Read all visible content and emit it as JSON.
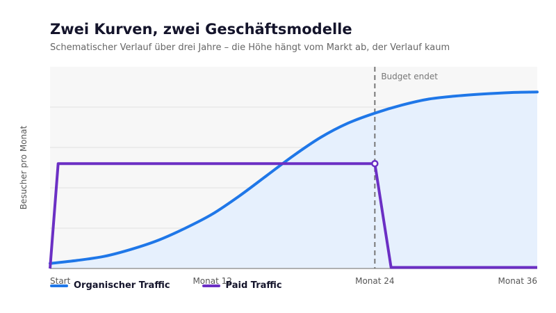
{
  "header": {
    "title": "Zwei Kurven, zwei Geschäftsmodelle",
    "subtitle": "Schematischer Verlauf über drei Jahre – die Höhe hängt vom Markt ab, der Verlauf kaum"
  },
  "colors": {
    "organic": "#1f77e8",
    "organic_fill": "#e6f0fd",
    "paid": "#6b2fc4",
    "plot_bg": "#f7f7f7",
    "grid": "#e0e0e0",
    "marker_line": "#777777"
  },
  "chart_data": {
    "type": "line",
    "title": "Zwei Kurven, zwei Geschäftsmodelle",
    "subtitle": "Schematischer Verlauf über drei Jahre – die Höhe hängt vom Markt ab, der Verlauf kaum",
    "xlabel": "",
    "ylabel": "Besucher pro Monat",
    "xlim": [
      0,
      36
    ],
    "ylim": [
      0,
      100
    ],
    "grid": true,
    "legend_position": "bottom-left",
    "x_ticks": [
      {
        "x": 0,
        "label": "Start"
      },
      {
        "x": 12,
        "label": "Monat 12"
      },
      {
        "x": 24,
        "label": "Monat 24"
      },
      {
        "x": 36,
        "label": "Monat 36"
      }
    ],
    "y_ticks_shown": false,
    "annotations": [
      {
        "type": "vline",
        "x": 24,
        "label": "Budget endet"
      }
    ],
    "series": [
      {
        "name": "Organischer Traffic",
        "color": "#1f77e8",
        "filled": true,
        "x": [
          0,
          2,
          4,
          6,
          8,
          10,
          12,
          14,
          16,
          18,
          20,
          22,
          24,
          26,
          28,
          30,
          32,
          34,
          36
        ],
        "y": [
          2.5,
          4,
          6,
          9.5,
          14,
          20,
          27,
          36,
          46,
          56,
          65,
          72,
          77,
          81,
          84,
          85.5,
          86.5,
          87.2,
          87.5
        ]
      },
      {
        "name": "Paid Traffic",
        "color": "#6b2fc4",
        "filled": false,
        "x": [
          0,
          0.6,
          24,
          25.2,
          36
        ],
        "y": [
          0,
          52,
          52,
          0.5,
          0.5
        ],
        "marker": {
          "x": 24,
          "y": 52
        }
      }
    ]
  }
}
